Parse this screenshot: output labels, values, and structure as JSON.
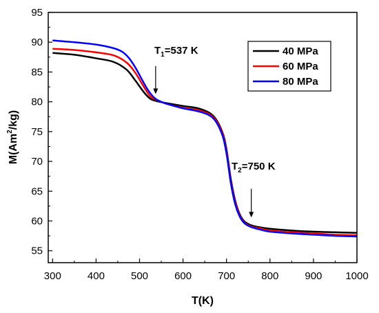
{
  "chart_data": {
    "type": "line",
    "xlabel": "T(K)",
    "ylabel_main": "M(Am",
    "ylabel_sup": "2",
    "ylabel_end": "/kg)",
    "xlim": [
      290,
      1000
    ],
    "ylim": [
      53,
      95
    ],
    "xticks": [
      300,
      400,
      500,
      600,
      700,
      800,
      900,
      1000
    ],
    "yticks": [
      55,
      60,
      65,
      70,
      75,
      80,
      85,
      90,
      95
    ],
    "legend_position": "top-right",
    "series": [
      {
        "name": "40 MPa",
        "color": "#000000",
        "x": [
          300,
          350,
          400,
          440,
          470,
          490,
          510,
          525,
          540,
          560,
          600,
          640,
          670,
          690,
          700,
          710,
          720,
          730,
          740,
          750,
          760,
          780,
          800,
          850,
          900,
          950,
          1000
        ],
        "y": [
          88.2,
          87.9,
          87.3,
          86.7,
          85.4,
          83.6,
          81.6,
          80.5,
          80.1,
          79.8,
          79.3,
          78.8,
          77.6,
          75.0,
          72.0,
          67.0,
          63.4,
          61.2,
          60.0,
          59.5,
          59.2,
          58.9,
          58.7,
          58.4,
          58.2,
          58.1,
          58.0
        ]
      },
      {
        "name": "60 MPa",
        "color": "#ff0000",
        "x": [
          300,
          350,
          400,
          440,
          470,
          490,
          510,
          525,
          540,
          560,
          600,
          640,
          670,
          690,
          700,
          710,
          720,
          730,
          740,
          750,
          760,
          780,
          800,
          850,
          900,
          950,
          1000
        ],
        "y": [
          88.9,
          88.7,
          88.3,
          87.8,
          86.6,
          84.9,
          82.5,
          80.9,
          80.3,
          79.7,
          79.0,
          78.5,
          77.4,
          74.8,
          71.6,
          66.6,
          63.1,
          61.0,
          59.8,
          59.3,
          59.0,
          58.7,
          58.4,
          58.1,
          57.9,
          57.7,
          57.6
        ]
      },
      {
        "name": "80 MPa",
        "color": "#0000ff",
        "x": [
          300,
          350,
          400,
          440,
          460,
          475,
          490,
          505,
          520,
          535,
          550,
          570,
          600,
          640,
          670,
          690,
          700,
          710,
          720,
          730,
          740,
          750,
          760,
          780,
          800,
          850,
          900,
          950,
          1000
        ],
        "y": [
          90.3,
          90.0,
          89.6,
          89.0,
          88.4,
          87.4,
          85.8,
          83.8,
          81.9,
          80.6,
          80.0,
          79.5,
          78.9,
          78.3,
          77.2,
          74.5,
          71.3,
          66.3,
          62.8,
          60.8,
          59.7,
          59.2,
          58.9,
          58.5,
          58.2,
          57.9,
          57.7,
          57.5,
          57.4
        ]
      }
    ],
    "annotations": [
      {
        "text_main": "T",
        "text_sub": "1",
        "text_end": "=537 K",
        "arrow_x": 537,
        "arrow_y_from": 86.0,
        "arrow_y_to": 81.3
      },
      {
        "text_main": "T",
        "text_sub": "2",
        "text_end": "=750 K",
        "arrow_x": 757,
        "arrow_y_from": 65.4,
        "arrow_y_to": 60.6
      }
    ]
  }
}
